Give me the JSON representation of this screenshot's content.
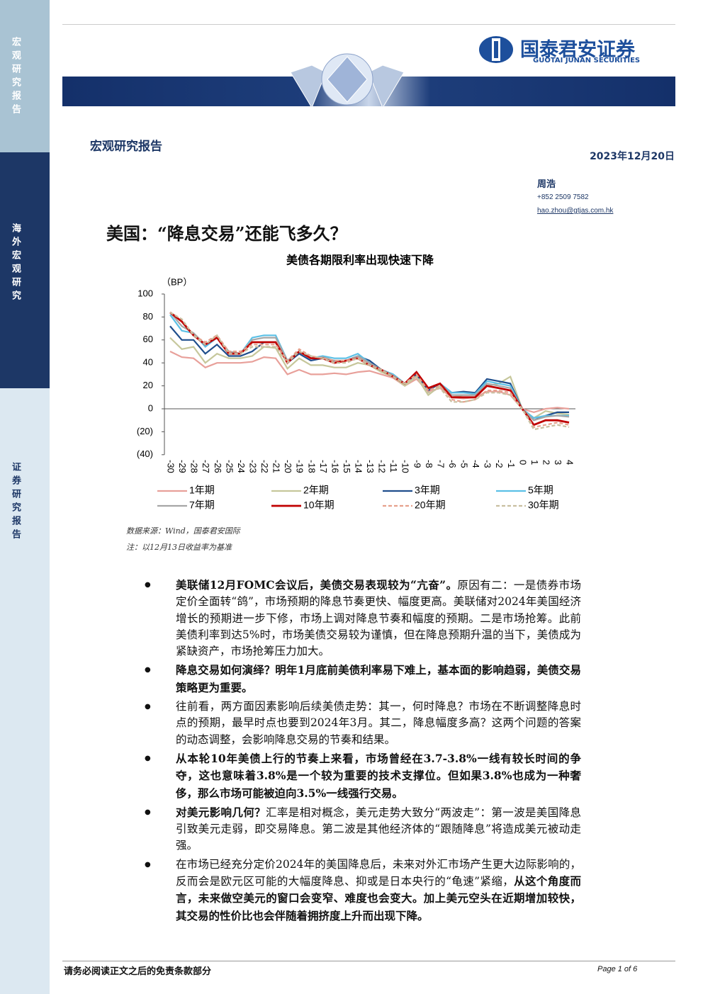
{
  "sidebar": [
    "宏观研究报告",
    "海外宏观研究",
    "证券研究报告"
  ],
  "header": {
    "logo_cn": "国泰君安证券",
    "logo_en": "GUOTAI JUNAN SECURITIES",
    "section": "宏观研究报告",
    "date": "2023年12月20日"
  },
  "author": {
    "name": "周浩",
    "phone": "+852 2509 7582",
    "email": "hao.zhou@gtjas.com.hk"
  },
  "title": "美国：“降息交易”还能飞多久？",
  "chart_data": {
    "type": "line",
    "title": "美债各期限利率出现快速下降",
    "y_label": "（BP）",
    "categories": [
      "-30",
      "-29",
      "-28",
      "-27",
      "-26",
      "-25",
      "-24",
      "-23",
      "-22",
      "-21",
      "-20",
      "-19",
      "-18",
      "-17",
      "-16",
      "-15",
      "-14",
      "-13",
      "-12",
      "-11",
      "-10",
      "-9",
      "-8",
      "-7",
      "-6",
      "-5",
      "-4",
      "-3",
      "-2",
      "-1",
      "0",
      "1",
      "2",
      "3",
      "4"
    ],
    "ylim": [
      -40,
      100
    ],
    "yticks": [
      100,
      80,
      60,
      40,
      20,
      0,
      {
        "value": -20,
        "label": "(20)"
      },
      {
        "value": -40,
        "label": "(40)"
      }
    ],
    "series": [
      {
        "name": "1年期",
        "color": "#e8a09a",
        "values": [
          50,
          45,
          44,
          36,
          40,
          40,
          40,
          41,
          45,
          44,
          30,
          34,
          30,
          30,
          31,
          30,
          32,
          33,
          30,
          27,
          20,
          26,
          15,
          18,
          10,
          9,
          10,
          15,
          15,
          12,
          0,
          -3,
          0,
          1,
          0
        ]
      },
      {
        "name": "2年期",
        "color": "#c6c79b",
        "values": [
          62,
          52,
          54,
          40,
          48,
          44,
          44,
          46,
          54,
          53,
          35,
          44,
          38,
          38,
          36,
          36,
          40,
          38,
          32,
          28,
          20,
          28,
          12,
          20,
          10,
          12,
          12,
          20,
          22,
          28,
          0,
          -8,
          -2,
          -4,
          -5
        ]
      },
      {
        "name": "3年期",
        "color": "#1f4e8c",
        "values": [
          72,
          60,
          60,
          48,
          56,
          46,
          46,
          50,
          58,
          58,
          40,
          48,
          42,
          44,
          42,
          42,
          46,
          42,
          34,
          30,
          22,
          30,
          16,
          22,
          14,
          15,
          14,
          26,
          24,
          22,
          0,
          -10,
          -6,
          -3,
          -3
        ]
      },
      {
        "name": "5年期",
        "color": "#5bc0e6",
        "values": [
          82,
          68,
          66,
          54,
          62,
          48,
          48,
          62,
          64,
          64,
          42,
          50,
          44,
          46,
          44,
          44,
          48,
          40,
          34,
          30,
          22,
          32,
          18,
          22,
          14,
          14,
          13,
          24,
          22,
          20,
          0,
          -8,
          -6,
          -6,
          -6
        ]
      },
      {
        "name": "7年期",
        "color": "#a6a6a6",
        "values": [
          84,
          72,
          66,
          56,
          62,
          50,
          48,
          60,
          62,
          62,
          42,
          50,
          44,
          45,
          42,
          42,
          46,
          40,
          34,
          29,
          22,
          32,
          18,
          22,
          12,
          12,
          12,
          22,
          20,
          18,
          0,
          -10,
          -7,
          -6,
          -7
        ]
      },
      {
        "name": "10年期",
        "color": "#c00000",
        "values": [
          84,
          76,
          64,
          56,
          62,
          48,
          48,
          58,
          58,
          58,
          40,
          50,
          44,
          44,
          40,
          42,
          44,
          38,
          34,
          28,
          22,
          32,
          18,
          22,
          10,
          10,
          10,
          20,
          18,
          16,
          0,
          -14,
          -10,
          -10,
          -12
        ]
      },
      {
        "name": "20年期",
        "color": "#e6a08c",
        "dashed": true,
        "values": [
          84,
          78,
          64,
          58,
          64,
          50,
          50,
          56,
          56,
          56,
          42,
          52,
          46,
          44,
          42,
          42,
          44,
          38,
          34,
          28,
          22,
          30,
          16,
          20,
          8,
          6,
          8,
          16,
          16,
          14,
          0,
          -16,
          -14,
          -12,
          -14
        ]
      },
      {
        "name": "30年期",
        "color": "#c9bfa0",
        "dashed": true,
        "values": [
          84,
          78,
          64,
          56,
          64,
          48,
          48,
          54,
          54,
          54,
          40,
          50,
          46,
          44,
          40,
          40,
          44,
          38,
          34,
          28,
          22,
          28,
          14,
          18,
          6,
          6,
          8,
          14,
          14,
          12,
          0,
          -18,
          -16,
          -14,
          -16
        ]
      }
    ]
  },
  "source": "数据来源：Wind，国泰君安国际",
  "note": "注：以12月13日收益率为基准",
  "bullets": [
    [
      {
        "text": "美联储12月FOMC会议后，美债交易表现较为“亢奋”。",
        "bold": true
      },
      {
        "text": "原因有二：一是债券市场定价全面转“鸽”，市场预期的降息节奏更快、幅度更高。美联储对2024年美国经济增长的预期进一步下修，市场上调对降息节奏和幅度的预期。二是市场抢筹。此前美债利率到达5%时，市场美债交易较为谨慎，但在降息预期升温的当下，美债成为紧缺资产，市场抢筹压力加大。",
        "bold": false
      }
    ],
    [
      {
        "text": "降息交易如何演绎？明年1月底前美债利率易下难上，基本面的影响趋弱，美债交易策略更为重要。",
        "bold": true
      }
    ],
    [
      {
        "text": "往前看，两方面因素影响后续美债走势：其一，何时降息？市场在不断调整降息时点的预期，最早时点也要到2024年3月。其二，降息幅度多高？这两个问题的答案的动态调整，会影响降息交易的节奏和结果。",
        "bold": false
      }
    ],
    [
      {
        "text": "从本轮10年美债上行的节奏上来看，市场曾经在3.7-3.8%一线有较长时间的争夺，这也意味着3.8%是一个较为重要的技术支撑位。但如果3.8%也成为一种奢侈，那么市场可能被迫向3.5%一线强行交易。",
        "bold": true
      }
    ],
    [
      {
        "text": "对美元影响几何？",
        "bold": true
      },
      {
        "text": "汇率是相对概念，美元走势大致分“两波走”：第一波是美国降息引致美元走弱，即交易降息。第二波是其他经济体的“跟随降息”将造成美元被动走强。",
        "bold": false
      }
    ],
    [
      {
        "text": "在市场已经充分定价2024年的美国降息后，未来对外汇市场产生更大边际影响的，反而会是欧元区可能的大幅度降息、抑或是日本央行的“龟速”紧缩，",
        "bold": false
      },
      {
        "text": "从这个角度而言，未来做空美元的窗口会变窄、难度也会变大。加上美元空头在近期增加较快，其交易的性价比也会伴随着拥挤度上升而出现下降。",
        "bold": true
      }
    ]
  ],
  "footer": {
    "disclaimer": "请务必阅读正文之后的免责条款部分",
    "page": "Page 1 of 6"
  }
}
